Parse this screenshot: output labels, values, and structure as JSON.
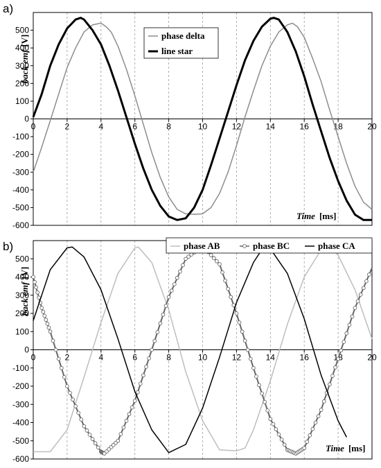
{
  "chart_data": [
    {
      "type": "line",
      "panel_label": "a)",
      "xlabel": "Time",
      "xunit": "[ms]",
      "ylabel": "back emf",
      "yunit": "[V]",
      "xlim": [
        0,
        20
      ],
      "ylim": [
        -600,
        600
      ],
      "xticks": [
        0,
        2,
        4,
        6,
        8,
        10,
        12,
        14,
        16,
        18,
        20
      ],
      "yticks": [
        -600,
        -500,
        -400,
        -300,
        -200,
        -100,
        0,
        100,
        200,
        300,
        400,
        500
      ],
      "grid": "vertical",
      "legend": "top-center",
      "series": [
        {
          "name": "phase delta",
          "color": "#8c8c8c",
          "x": [
            0,
            0.5,
            1,
            1.5,
            2,
            2.5,
            3,
            3.5,
            4,
            4.3,
            4.6,
            5,
            5.5,
            6,
            6.5,
            7,
            7.5,
            8,
            8.5,
            9,
            9.5,
            10,
            10.5,
            11,
            11.5,
            12,
            12.5,
            13,
            13.5,
            14,
            14.5,
            15,
            15.3,
            15.6,
            16,
            16.5,
            17,
            17.5,
            18,
            18.5,
            19,
            19.5,
            20
          ],
          "y": [
            -300,
            -160,
            -10,
            140,
            290,
            400,
            490,
            530,
            540,
            520,
            490,
            410,
            280,
            130,
            -30,
            -190,
            -330,
            -440,
            -510,
            -535,
            -538,
            -535,
            -500,
            -420,
            -300,
            -150,
            10,
            160,
            300,
            410,
            490,
            530,
            540,
            520,
            460,
            340,
            210,
            50,
            -100,
            -250,
            -380,
            -470,
            -510
          ]
        },
        {
          "name": "line star",
          "color": "#000000",
          "x": [
            0,
            0.5,
            1,
            1.5,
            2,
            2.5,
            2.8,
            3,
            3.5,
            4,
            4.5,
            5,
            5.5,
            6,
            6.5,
            7,
            7.5,
            8,
            8.5,
            9,
            9.5,
            10,
            10.5,
            11,
            11.5,
            12,
            12.5,
            13,
            13.5,
            14,
            14.2,
            14.5,
            15,
            15.5,
            16,
            16.5,
            17,
            17.5,
            18,
            18.5,
            19,
            19.5,
            20
          ],
          "y": [
            10,
            140,
            300,
            420,
            510,
            560,
            570,
            560,
            500,
            420,
            300,
            160,
            10,
            -140,
            -280,
            -400,
            -490,
            -550,
            -570,
            -560,
            -500,
            -400,
            -260,
            -110,
            40,
            190,
            330,
            440,
            520,
            565,
            570,
            560,
            490,
            380,
            240,
            80,
            -70,
            -220,
            -350,
            -460,
            -540,
            -570,
            -570
          ]
        }
      ]
    },
    {
      "type": "line",
      "panel_label": "b)",
      "xlabel": "Time",
      "xunit": "[ms]",
      "ylabel": "back emf",
      "yunit": "[V]",
      "xlim": [
        0,
        20
      ],
      "ylim": [
        -600,
        600
      ],
      "xticks": [
        0,
        2,
        4,
        6,
        8,
        10,
        12,
        14,
        16,
        18,
        20
      ],
      "yticks": [
        -600,
        -500,
        -400,
        -300,
        -200,
        -100,
        0,
        100,
        200,
        300,
        400,
        500
      ],
      "grid": "vertical",
      "legend": "top",
      "series": [
        {
          "name": "phase AB",
          "color": "#bdbdbd",
          "x": [
            0,
            1,
            2,
            3,
            4,
            5,
            6,
            6.2,
            7,
            8,
            9,
            10,
            11,
            12,
            12.5,
            13,
            14,
            15,
            16,
            17,
            17.5,
            18,
            19,
            20
          ],
          "y": [
            -560,
            -560,
            -440,
            -150,
            150,
            420,
            560,
            565,
            480,
            220,
            -120,
            -390,
            -550,
            -555,
            -540,
            -440,
            -170,
            140,
            400,
            550,
            565,
            520,
            330,
            60
          ]
        },
        {
          "name": "phase BC",
          "color": "#666666",
          "marker": "circle",
          "x": [
            0,
            0.5,
            1,
            2,
            3,
            4,
            4.2,
            5,
            6,
            7,
            8,
            9,
            10,
            11,
            12,
            13,
            14,
            15,
            15.5,
            16,
            17,
            18,
            19,
            20
          ],
          "y": [
            400,
            230,
            100,
            -200,
            -420,
            -560,
            -570,
            -500,
            -280,
            0,
            290,
            500,
            570,
            470,
            200,
            -100,
            -380,
            -550,
            -570,
            -540,
            -330,
            -50,
            230,
            450
          ]
        },
        {
          "name": "phase CA",
          "color": "#000000",
          "x": [
            0,
            0.5,
            1,
            2,
            2.3,
            3,
            4,
            5,
            6,
            7,
            8,
            9,
            10,
            11,
            12,
            13,
            13.6,
            14,
            15,
            16,
            17,
            18,
            18.5
          ],
          "y": [
            160,
            300,
            440,
            560,
            565,
            510,
            330,
            60,
            -230,
            -440,
            -565,
            -520,
            -320,
            -40,
            260,
            480,
            565,
            555,
            420,
            170,
            -140,
            -390,
            -480
          ]
        }
      ]
    }
  ]
}
